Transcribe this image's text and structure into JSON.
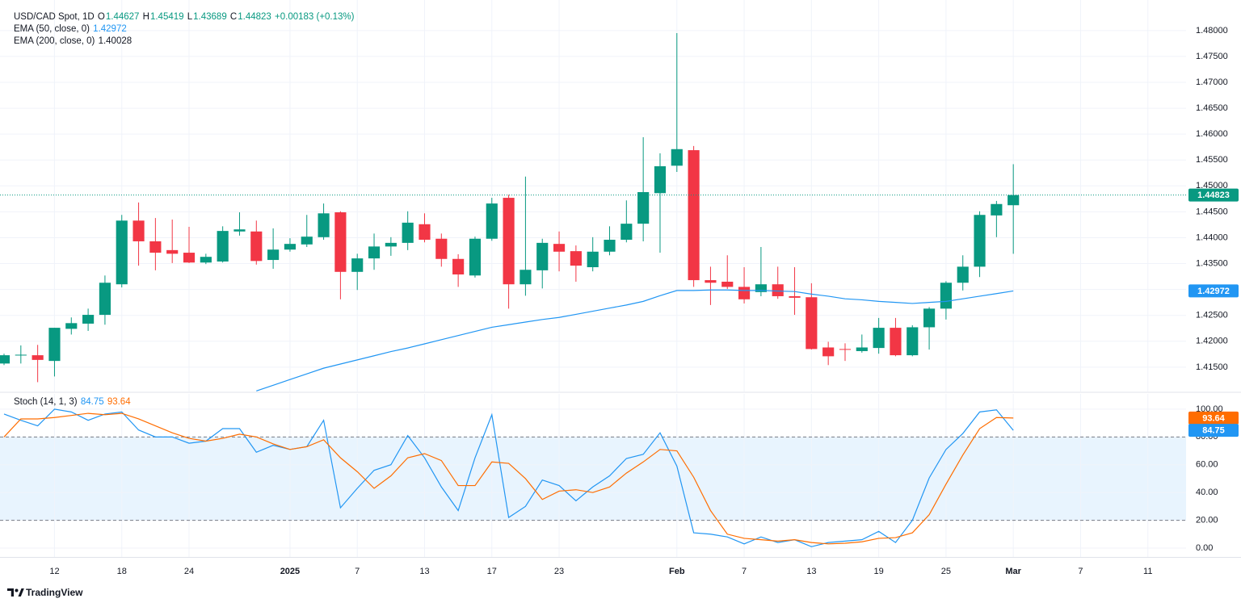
{
  "chart_data": [
    {
      "type": "candlestick",
      "title": "USD/CAD Spot, 1D",
      "ohlc_prefixes": [
        "O",
        "H",
        "L",
        "C"
      ],
      "change_label": "+0.00183 (+0.13%)",
      "up_color": "#089981",
      "down_color": "#f23645",
      "x": [
        0,
        1,
        2,
        3,
        4,
        5,
        6,
        7,
        8,
        9,
        10,
        11,
        12,
        13,
        14,
        15,
        16,
        17,
        18,
        19,
        20,
        21,
        22,
        23,
        24,
        25,
        26,
        27,
        28,
        29,
        30,
        31,
        32,
        33,
        34,
        35,
        36,
        37,
        38,
        39,
        40,
        41,
        42,
        43,
        44,
        45,
        46,
        47,
        48,
        49,
        50,
        51,
        52,
        53,
        54,
        55,
        56,
        57,
        58,
        59,
        60
      ],
      "open": [
        1.4157,
        1.4173,
        1.4173,
        1.4162,
        1.4224,
        1.4234,
        1.4251,
        1.431,
        1.4433,
        1.4393,
        1.4376,
        1.4371,
        1.4352,
        1.4354,
        1.4412,
        1.4412,
        1.4357,
        1.4377,
        1.4387,
        1.4401,
        1.4449,
        1.4334,
        1.436,
        1.4383,
        1.439,
        1.4426,
        1.4398,
        1.4359,
        1.4327,
        1.4398,
        1.4477,
        1.431,
        1.4337,
        1.4388,
        1.4374,
        1.4343,
        1.4373,
        1.4396,
        1.4427,
        1.4486,
        1.4539,
        1.4569,
        1.4318,
        1.4315,
        1.4305,
        1.4295,
        1.431,
        1.4287,
        1.4285,
        1.4188,
        1.4185,
        1.4181,
        1.4187,
        1.4226,
        1.4173,
        1.4227,
        1.4263,
        1.4313,
        1.4344,
        1.4443,
        1.44627
      ],
      "high": [
        1.4176,
        1.4192,
        1.4193,
        1.4226,
        1.4246,
        1.4263,
        1.4327,
        1.4444,
        1.4468,
        1.4438,
        1.4435,
        1.4421,
        1.4369,
        1.4422,
        1.4449,
        1.4433,
        1.4418,
        1.4399,
        1.4444,
        1.4466,
        1.4451,
        1.4369,
        1.4408,
        1.4401,
        1.4451,
        1.4447,
        1.4408,
        1.4368,
        1.4402,
        1.4477,
        1.4483,
        1.4518,
        1.4398,
        1.4412,
        1.4385,
        1.4401,
        1.4422,
        1.4472,
        1.4594,
        1.4563,
        1.4795,
        1.4577,
        1.4344,
        1.4366,
        1.4343,
        1.4382,
        1.4344,
        1.4343,
        1.4312,
        1.4199,
        1.4196,
        1.4213,
        1.4245,
        1.4245,
        1.4231,
        1.4266,
        1.4316,
        1.4366,
        1.4451,
        1.4471,
        1.45419
      ],
      "low": [
        1.4154,
        1.4157,
        1.4121,
        1.4132,
        1.4213,
        1.422,
        1.4232,
        1.4304,
        1.4346,
        1.4337,
        1.4351,
        1.4351,
        1.4349,
        1.4352,
        1.4404,
        1.4348,
        1.434,
        1.4373,
        1.4382,
        1.4396,
        1.4281,
        1.4299,
        1.4338,
        1.4365,
        1.4376,
        1.4391,
        1.4344,
        1.4305,
        1.4323,
        1.4394,
        1.4263,
        1.4288,
        1.4302,
        1.4335,
        1.4315,
        1.4335,
        1.4366,
        1.4391,
        1.4393,
        1.4371,
        1.4527,
        1.4305,
        1.427,
        1.4301,
        1.4273,
        1.4287,
        1.4282,
        1.4251,
        1.4184,
        1.4154,
        1.4162,
        1.4178,
        1.4176,
        1.4171,
        1.4171,
        1.4184,
        1.4242,
        1.4298,
        1.4324,
        1.4401,
        1.43689
      ],
      "close": [
        1.4173,
        1.4174,
        1.4164,
        1.4226,
        1.4235,
        1.4251,
        1.4313,
        1.4433,
        1.4393,
        1.4371,
        1.4369,
        1.4352,
        1.4363,
        1.4413,
        1.4416,
        1.4355,
        1.4377,
        1.4388,
        1.4402,
        1.4447,
        1.4334,
        1.436,
        1.4383,
        1.439,
        1.4429,
        1.4396,
        1.4359,
        1.4329,
        1.4398,
        1.4466,
        1.431,
        1.4338,
        1.439,
        1.4373,
        1.4346,
        1.4373,
        1.4396,
        1.4427,
        1.4488,
        1.4538,
        1.4571,
        1.4318,
        1.4313,
        1.4305,
        1.4281,
        1.431,
        1.4287,
        1.4284,
        1.4185,
        1.4171,
        1.4184,
        1.4188,
        1.4226,
        1.4173,
        1.4227,
        1.4263,
        1.4313,
        1.4344,
        1.4444,
        1.4465,
        1.44823
      ],
      "series": [
        {
          "name": "EMA (50, close, 0)",
          "color": "#2196f3",
          "values": [
            null,
            null,
            null,
            null,
            null,
            null,
            null,
            null,
            null,
            null,
            null,
            null,
            null,
            null,
            null,
            1.4104,
            1.4115,
            1.4126,
            1.4137,
            1.4148,
            1.4156,
            1.4164,
            1.4172,
            1.418,
            1.4187,
            1.4195,
            1.4203,
            1.4211,
            1.4219,
            1.4227,
            1.4232,
            1.4237,
            1.4242,
            1.4246,
            1.4252,
            1.4258,
            1.4264,
            1.427,
            1.4277,
            1.4288,
            1.4298,
            1.4298,
            1.4299,
            1.4299,
            1.4298,
            1.4298,
            1.4297,
            1.4296,
            1.4291,
            1.4287,
            1.4282,
            1.428,
            1.4277,
            1.4275,
            1.4273,
            1.4275,
            1.4277,
            1.4282,
            1.4287,
            1.4292,
            1.42972
          ]
        },
        {
          "name": "EMA (200, close, 0)",
          "color": "#131722",
          "value": 1.40028
        }
      ],
      "xlim": [
        -0.24,
        70.27
      ],
      "xticks": [
        {
          "value": 3,
          "label": "12"
        },
        {
          "value": 7,
          "label": "18"
        },
        {
          "value": 11,
          "label": "24"
        },
        {
          "value": 17,
          "label": "2025"
        },
        {
          "value": 21,
          "label": "7"
        },
        {
          "value": 25,
          "label": "13"
        },
        {
          "value": 29,
          "label": "17"
        },
        {
          "value": 33,
          "label": "23"
        },
        {
          "value": 40,
          "label": "Feb"
        },
        {
          "value": 44,
          "label": "7"
        },
        {
          "value": 48,
          "label": "13"
        },
        {
          "value": 52,
          "label": "19"
        },
        {
          "value": 56,
          "label": "25"
        },
        {
          "value": 60,
          "label": "Mar"
        },
        {
          "value": 64,
          "label": "7"
        },
        {
          "value": 68,
          "label": "11"
        }
      ],
      "ylim": [
        1.4103,
        1.4859
      ],
      "yticks": [
        {
          "value": 1.415,
          "label": "1.41500"
        },
        {
          "value": 1.42,
          "label": "1.42000"
        },
        {
          "value": 1.425,
          "label": "1.42500"
        },
        {
          "value": 1.43,
          "label": "1.43000"
        },
        {
          "value": 1.435,
          "label": "1.43500"
        },
        {
          "value": 1.44,
          "label": "1.44000"
        },
        {
          "value": 1.445,
          "label": "1.44500"
        },
        {
          "value": 1.45,
          "label": "1.45000"
        },
        {
          "value": 1.455,
          "label": "1.45500"
        },
        {
          "value": 1.46,
          "label": "1.46000"
        },
        {
          "value": 1.465,
          "label": "1.46500"
        },
        {
          "value": 1.47,
          "label": "1.47000"
        },
        {
          "value": 1.475,
          "label": "1.47500"
        },
        {
          "value": 1.48,
          "label": "1.48000"
        }
      ],
      "grid": true,
      "last_price_line": true
    },
    {
      "type": "line",
      "title": "Stoch (14, 1, 3)",
      "series": [
        {
          "color": "#2196f3",
          "values": [
            96.5,
            92,
            88,
            100,
            98,
            92,
            96.5,
            98,
            85,
            80,
            80,
            75.5,
            77,
            86,
            86,
            69,
            74,
            71,
            73,
            92,
            29,
            43,
            56,
            60,
            81,
            65,
            44,
            27,
            65,
            96,
            22,
            30,
            49,
            45,
            34,
            44,
            52,
            64.5,
            67.5,
            83,
            59,
            11,
            10,
            8,
            3,
            8,
            4,
            6,
            1,
            4,
            5,
            6,
            12,
            4,
            20,
            50.5,
            71,
            82.5,
            98,
            99.5,
            84.75
          ]
        },
        {
          "color": "#ff6d00",
          "values": [
            80,
            93,
            93,
            94,
            95.5,
            97,
            96,
            97,
            93,
            88,
            83,
            79,
            77,
            79,
            82,
            80,
            75,
            71,
            73,
            78,
            65,
            55,
            43,
            52,
            65,
            68,
            63,
            45,
            45,
            62,
            61,
            50,
            35,
            41,
            42,
            40,
            44,
            54,
            62,
            71,
            70,
            51,
            27,
            10,
            7,
            6,
            5,
            6,
            4,
            3,
            3.5,
            4.5,
            7,
            7.5,
            11,
            24,
            46,
            67,
            86,
            94,
            93.64
          ]
        }
      ],
      "band": [
        20,
        80
      ],
      "band_color": "#2196f3",
      "ylim": [
        -6.4,
        111
      ],
      "yticks": [
        {
          "value": 0,
          "label": "0.00"
        },
        {
          "value": 20,
          "label": "20.00"
        },
        {
          "value": 40,
          "label": "40.00"
        },
        {
          "value": 60,
          "label": "60.00"
        },
        {
          "value": 80,
          "label": "80.00"
        },
        {
          "value": 100,
          "label": "100.00"
        }
      ],
      "grid": true
    }
  ],
  "branding": "TradingView"
}
